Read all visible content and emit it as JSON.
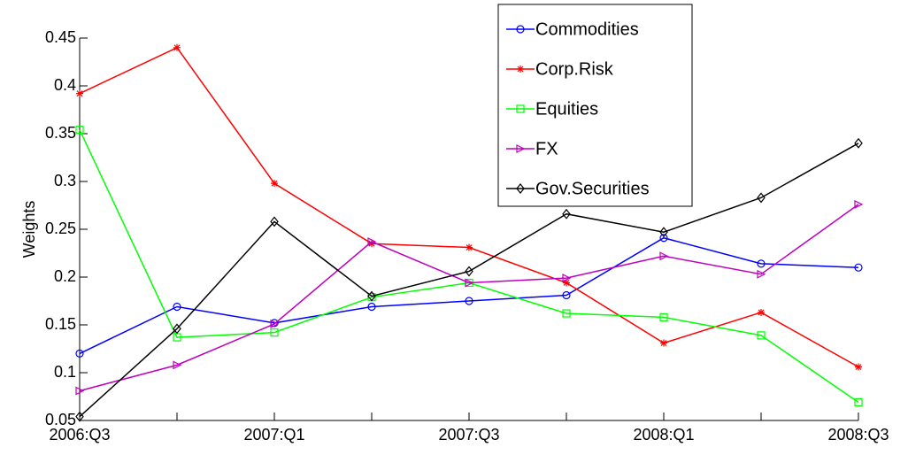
{
  "chart_data": {
    "type": "line",
    "y_label": "Weights",
    "categories": [
      "2006:Q3",
      null,
      "2007:Q1",
      null,
      "2007:Q3",
      null,
      "2008:Q1",
      null,
      "2008:Q3"
    ],
    "ylim": [
      0.05,
      0.45
    ],
    "yticks": [
      0.05,
      0.1,
      0.15,
      0.2,
      0.25,
      0.3,
      0.35,
      0.4,
      0.45
    ],
    "grid": false,
    "legend": "top-right",
    "series": [
      {
        "name": "Commodities",
        "color": "#0000ff",
        "marker": "circle",
        "values": [
          0.12,
          0.169,
          0.152,
          0.169,
          0.175,
          0.181,
          0.241,
          0.214,
          0.21
        ]
      },
      {
        "name": "Corp.Risk",
        "color": "#ff0000",
        "marker": "star",
        "values": [
          0.392,
          0.44,
          0.298,
          0.235,
          0.231,
          0.194,
          0.131,
          0.163,
          0.106
        ]
      },
      {
        "name": "Equities",
        "color": "#00ff00",
        "marker": "square",
        "values": [
          0.354,
          0.137,
          0.142,
          0.179,
          0.194,
          0.162,
          0.158,
          0.139,
          0.069
        ]
      },
      {
        "name": "FX",
        "color": "#bf00bf",
        "marker": "triangle-right",
        "values": [
          0.081,
          0.108,
          0.151,
          0.237,
          0.194,
          0.199,
          0.222,
          0.203,
          0.276
        ]
      },
      {
        "name": "Gov.Securities",
        "color": "#000000",
        "marker": "diamond",
        "values": [
          0.054,
          0.146,
          0.258,
          0.18,
          0.206,
          0.266,
          0.247,
          0.283,
          0.34
        ]
      }
    ]
  }
}
